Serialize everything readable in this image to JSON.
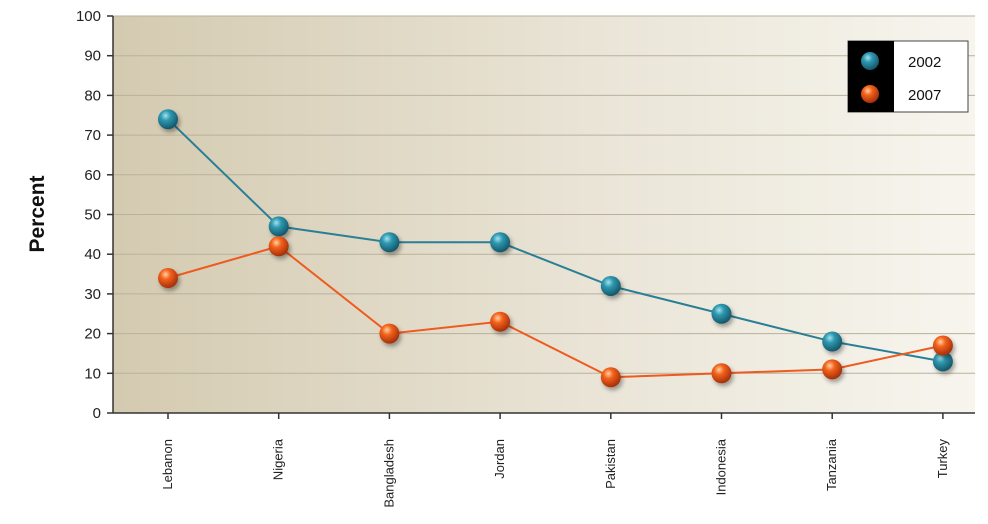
{
  "chart_data": {
    "type": "line",
    "title": "",
    "xlabel": "",
    "ylabel": "Percent",
    "categories": [
      "Lebanon",
      "Nigeria",
      "Bangladesh",
      "Jordan",
      "Pakistan",
      "Indonesia",
      "Tanzania",
      "Turkey"
    ],
    "series": [
      {
        "name": "2002",
        "color": "#2a7f96",
        "values": [
          74,
          47,
          43,
          43,
          32,
          25,
          18,
          13
        ]
      },
      {
        "name": "2007",
        "color": "#ef5a1f",
        "values": [
          34,
          42,
          20,
          23,
          9,
          10,
          11,
          17
        ]
      }
    ],
    "ylim": [
      0,
      100
    ],
    "yticks": [
      0,
      10,
      20,
      30,
      40,
      50,
      60,
      70,
      80,
      90,
      100
    ],
    "grid": true,
    "legend_position": "top-right"
  }
}
